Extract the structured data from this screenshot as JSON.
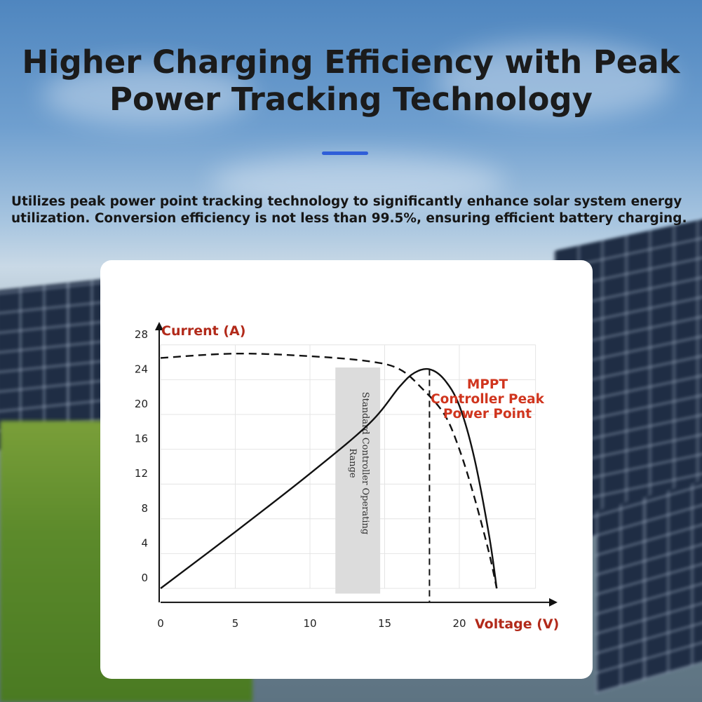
{
  "headline": "Higher Charging Efficiency with Peak Power Tracking Technology",
  "description": "Utilizes peak power point tracking technology to significantly enhance solar system energy utilization. Conversion efficiency is not less than 99.5%, ensuring efficient battery charging.",
  "colors": {
    "accent_bar": "#2f5ed8",
    "axis_labels": "#b22a1a",
    "mppt_label": "#d0351e",
    "curve": "#111111",
    "range_band": "#dcdcdc"
  },
  "chart_data": {
    "type": "line",
    "xlabel": "Voltage (V)",
    "ylabel": "Current (A)",
    "xlim": [
      0,
      26
    ],
    "ylim": [
      0,
      28
    ],
    "x_ticks": [
      0,
      5,
      10,
      15,
      20
    ],
    "y_ticks": [
      0,
      4,
      8,
      12,
      16,
      20,
      24,
      28
    ],
    "grid": true,
    "series": [
      {
        "style": "solid",
        "points": [
          [
            0,
            0
          ],
          [
            5,
            6.5
          ],
          [
            10,
            13.2
          ],
          [
            14,
            19
          ],
          [
            16,
            23.2
          ],
          [
            17,
            24.8
          ],
          [
            18,
            25.2
          ],
          [
            19,
            24
          ],
          [
            20,
            21
          ],
          [
            21,
            15
          ],
          [
            22,
            6
          ],
          [
            22.5,
            0
          ]
        ]
      },
      {
        "style": "dashed",
        "points": [
          [
            0,
            26.5
          ],
          [
            5,
            27
          ],
          [
            10,
            26.7
          ],
          [
            14,
            26.1
          ],
          [
            16,
            25.2
          ],
          [
            17.5,
            23
          ],
          [
            19,
            20
          ],
          [
            20,
            16
          ],
          [
            21,
            10.5
          ],
          [
            22,
            4
          ],
          [
            22.5,
            0
          ]
        ]
      }
    ],
    "band": {
      "x_range": [
        11.7,
        14.7
      ],
      "label": "Standard Controller Operating Range"
    },
    "peak": {
      "x": 18,
      "y": 25.2
    },
    "annotations": [
      "MPPT",
      "Controller Peak",
      "Power Point"
    ]
  }
}
